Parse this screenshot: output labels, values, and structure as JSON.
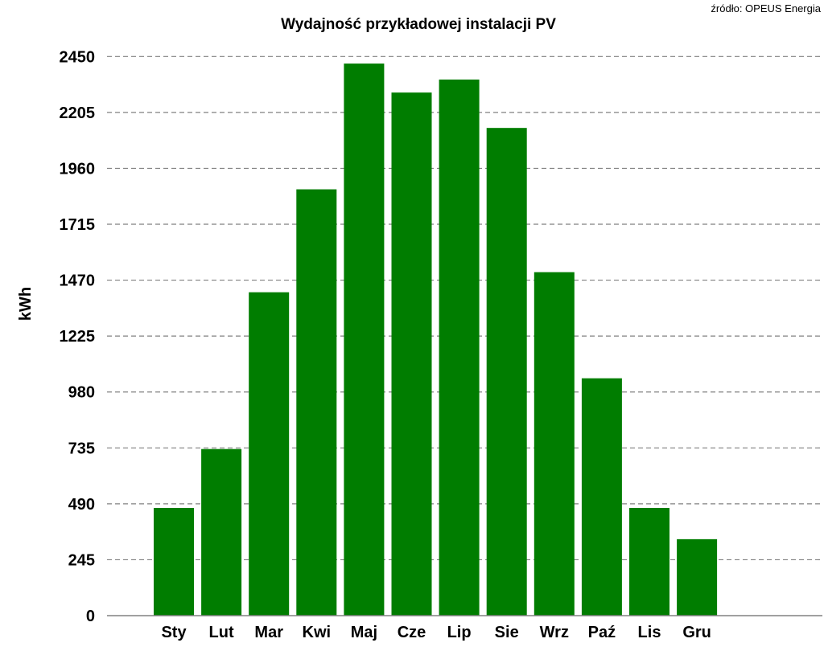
{
  "chart_data": {
    "type": "bar",
    "title": "Wydajność przykładowej instalacji PV",
    "source": "źródło: OPEUS Energia",
    "xlabel": "",
    "ylabel": "kWh",
    "ylim": [
      0,
      2450
    ],
    "yticks": [
      0,
      245,
      490,
      735,
      980,
      1225,
      1470,
      1715,
      1960,
      2205,
      2450
    ],
    "grid": true,
    "categories": [
      "Sty",
      "Lut",
      "Mar",
      "Kwi",
      "Maj",
      "Cze",
      "Lip",
      "Sie",
      "Wrz",
      "Paź",
      "Lis",
      "Gru"
    ],
    "values": [
      472,
      730,
      1417,
      1868,
      2419,
      2292,
      2349,
      2137,
      1505,
      1040,
      472,
      335
    ],
    "bar_color": "#007d00"
  }
}
